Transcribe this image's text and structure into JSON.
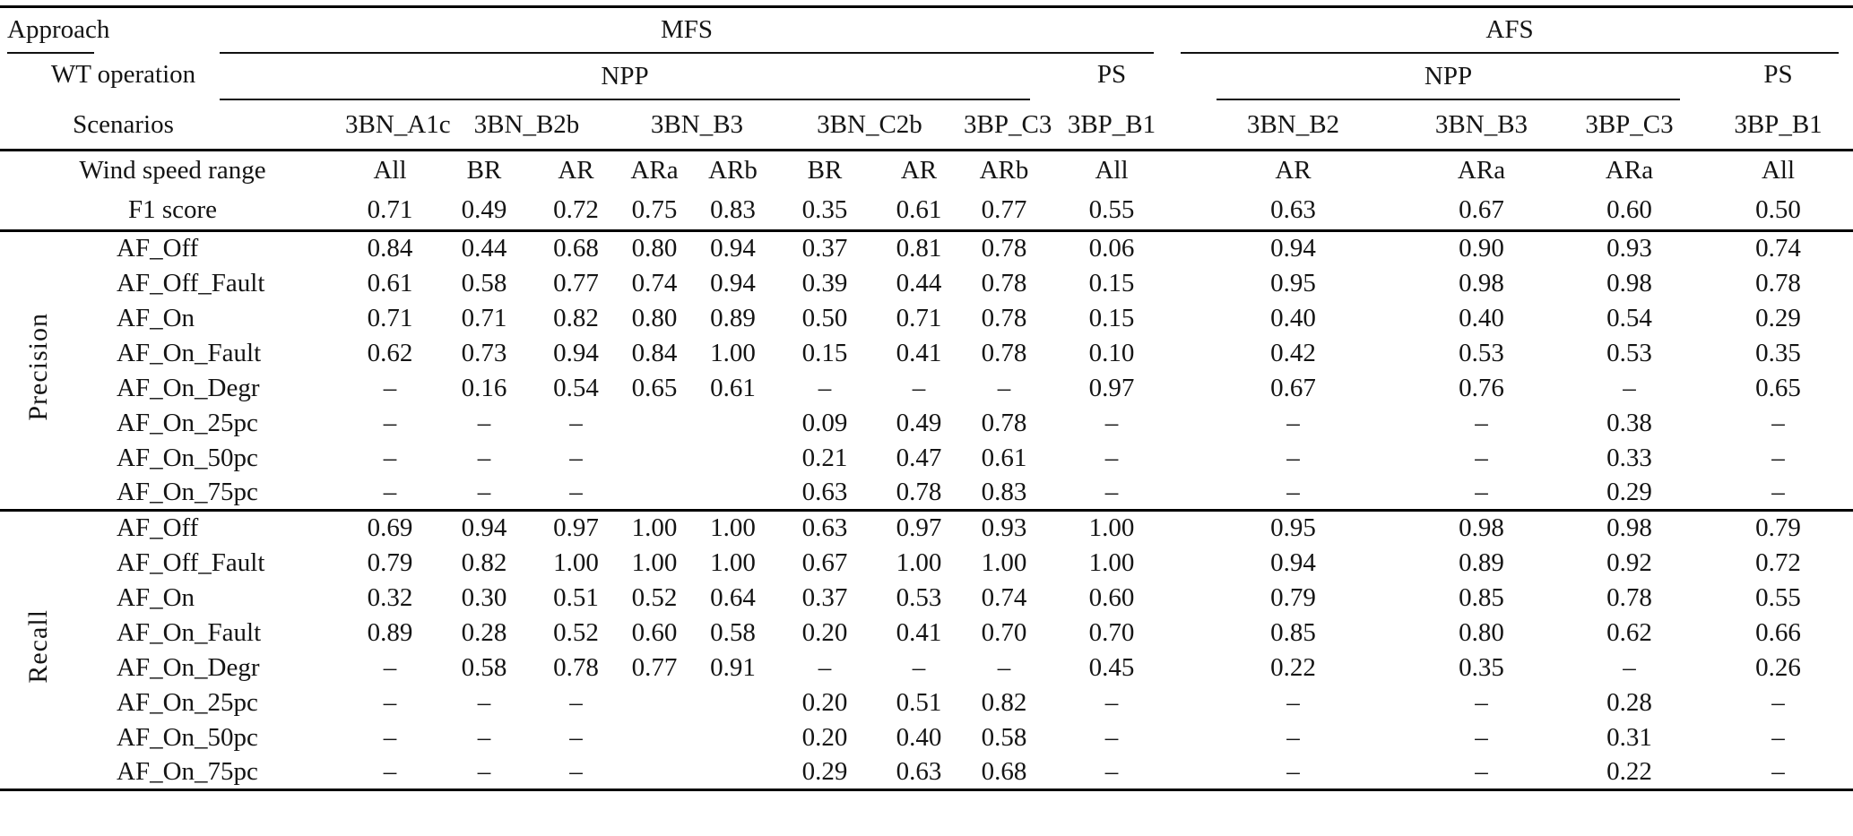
{
  "header": {
    "approach_label": "Approach",
    "wt_operation_label": "WT operation",
    "scenarios_label": "Scenarios",
    "mfs_label": "MFS",
    "afs_label": "AFS",
    "mfs_npp_label": "NPP",
    "mfs_ps_label": "PS",
    "afs_npp_label": "NPP",
    "afs_ps_label": "PS",
    "mfs_scenarios": [
      {
        "label": "3BN_A1c",
        "span": 1
      },
      {
        "label": "3BN_B2b",
        "span": 2
      },
      {
        "label": "3BN_B3",
        "span": 2
      },
      {
        "label": "3BN_C2b",
        "span": 2
      },
      {
        "label": "3BP_C3",
        "span": 1
      },
      {
        "label": "3BP_B1",
        "span": 1
      }
    ],
    "afs_scenarios": [
      {
        "label": "3BN_B2",
        "span": 1
      },
      {
        "label": "3BN_B3",
        "span": 1
      },
      {
        "label": "3BP_C3",
        "span": 1
      },
      {
        "label": "3BP_B1",
        "span": 1
      }
    ]
  },
  "info_rows": [
    {
      "label": "Wind speed range",
      "values": [
        "All",
        "BR",
        "AR",
        "ARa",
        "ARb",
        "BR",
        "AR",
        "ARb",
        "All",
        "AR",
        "ARa",
        "ARa",
        "All"
      ]
    },
    {
      "label": "F1 score",
      "values": [
        "0.71",
        "0.49",
        "0.72",
        "0.75",
        "0.83",
        "0.35",
        "0.61",
        "0.77",
        "0.55",
        "0.63",
        "0.67",
        "0.60",
        "0.50"
      ]
    }
  ],
  "sections": [
    {
      "name": "Precision",
      "rows": [
        {
          "label": "AF_Off",
          "values": [
            "0.84",
            "0.44",
            "0.68",
            "0.80",
            "0.94",
            "0.37",
            "0.81",
            "0.78",
            "0.06",
            "0.94",
            "0.90",
            "0.93",
            "0.74"
          ]
        },
        {
          "label": "AF_Off_Fault",
          "values": [
            "0.61",
            "0.58",
            "0.77",
            "0.74",
            "0.94",
            "0.39",
            "0.44",
            "0.78",
            "0.15",
            "0.95",
            "0.98",
            "0.98",
            "0.78"
          ]
        },
        {
          "label": "AF_On",
          "values": [
            "0.71",
            "0.71",
            "0.82",
            "0.80",
            "0.89",
            "0.50",
            "0.71",
            "0.78",
            "0.15",
            "0.40",
            "0.40",
            "0.54",
            "0.29"
          ]
        },
        {
          "label": "AF_On_Fault",
          "values": [
            "0.62",
            "0.73",
            "0.94",
            "0.84",
            "1.00",
            "0.15",
            "0.41",
            "0.78",
            "0.10",
            "0.42",
            "0.53",
            "0.53",
            "0.35"
          ]
        },
        {
          "label": "AF_On_Degr",
          "values": [
            "–",
            "0.16",
            "0.54",
            "0.65",
            "0.61",
            "–",
            "–",
            "–",
            "0.97",
            "0.67",
            "0.76",
            "–",
            "0.65"
          ]
        },
        {
          "label": "AF_On_25pc",
          "values": [
            "–",
            "–",
            "–",
            "",
            "",
            "0.09",
            "0.49",
            "0.78",
            "–",
            "–",
            "–",
            "0.38",
            "–"
          ]
        },
        {
          "label": "AF_On_50pc",
          "values": [
            "–",
            "–",
            "–",
            "",
            "",
            "0.21",
            "0.47",
            "0.61",
            "–",
            "–",
            "–",
            "0.33",
            "–"
          ]
        },
        {
          "label": "AF_On_75pc",
          "values": [
            "–",
            "–",
            "–",
            "",
            "",
            "0.63",
            "0.78",
            "0.83",
            "–",
            "–",
            "–",
            "0.29",
            "–"
          ]
        }
      ]
    },
    {
      "name": "Recall",
      "rows": [
        {
          "label": "AF_Off",
          "values": [
            "0.69",
            "0.94",
            "0.97",
            "1.00",
            "1.00",
            "0.63",
            "0.97",
            "0.93",
            "1.00",
            "0.95",
            "0.98",
            "0.98",
            "0.79"
          ]
        },
        {
          "label": "AF_Off_Fault",
          "values": [
            "0.79",
            "0.82",
            "1.00",
            "1.00",
            "1.00",
            "0.67",
            "1.00",
            "1.00",
            "1.00",
            "0.94",
            "0.89",
            "0.92",
            "0.72"
          ]
        },
        {
          "label": "AF_On",
          "values": [
            "0.32",
            "0.30",
            "0.51",
            "0.52",
            "0.64",
            "0.37",
            "0.53",
            "0.74",
            "0.60",
            "0.79",
            "0.85",
            "0.78",
            "0.55"
          ]
        },
        {
          "label": "AF_On_Fault",
          "values": [
            "0.89",
            "0.28",
            "0.52",
            "0.60",
            "0.58",
            "0.20",
            "0.41",
            "0.70",
            "0.70",
            "0.85",
            "0.80",
            "0.62",
            "0.66"
          ]
        },
        {
          "label": "AF_On_Degr",
          "values": [
            "–",
            "0.58",
            "0.78",
            "0.77",
            "0.91",
            "–",
            "–",
            "–",
            "0.45",
            "0.22",
            "0.35",
            "–",
            "0.26"
          ]
        },
        {
          "label": "AF_On_25pc",
          "values": [
            "–",
            "–",
            "–",
            "",
            "",
            "0.20",
            "0.51",
            "0.82",
            "–",
            "–",
            "–",
            "0.28",
            "–"
          ]
        },
        {
          "label": "AF_On_50pc",
          "values": [
            "–",
            "–",
            "–",
            "",
            "",
            "0.20",
            "0.40",
            "0.58",
            "–",
            "–",
            "–",
            "0.31",
            "–"
          ]
        },
        {
          "label": "AF_On_75pc",
          "values": [
            "–",
            "–",
            "–",
            "",
            "",
            "0.29",
            "0.63",
            "0.68",
            "–",
            "–",
            "–",
            "0.22",
            "–"
          ]
        }
      ]
    }
  ]
}
